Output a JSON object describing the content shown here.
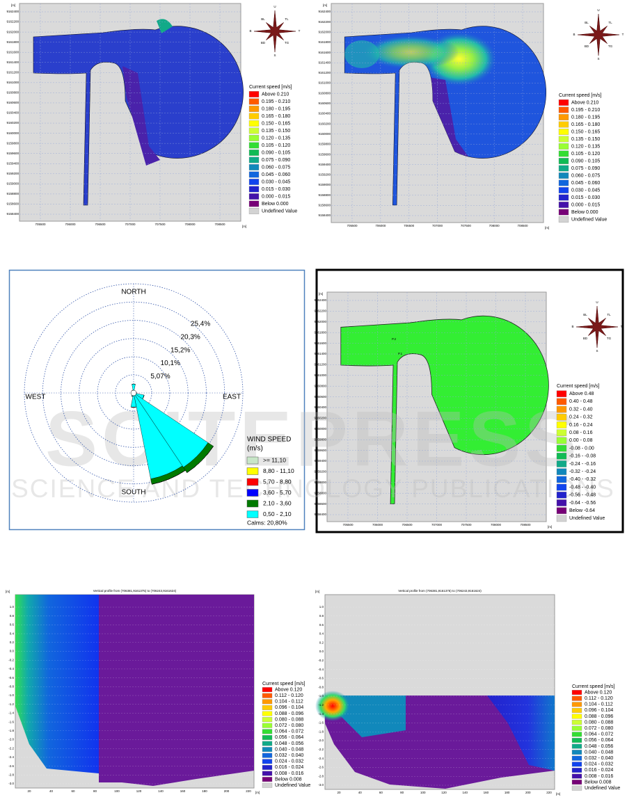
{
  "watermark": {
    "brand": "SCITEPRESS",
    "sub": "SCIENCE AND TECHNOLOGY PUBLICATIONS"
  },
  "compass": [
    "U",
    "TL",
    "T",
    "TG",
    "S",
    "BD",
    "B",
    "BL"
  ],
  "palette": [
    "#ff0000",
    "#ff5a00",
    "#ff9900",
    "#ffcc00",
    "#ffff00",
    "#ccff33",
    "#99ff33",
    "#33dd33",
    "#11bb55",
    "#11aa88",
    "#1188bb",
    "#1166dd",
    "#1144ee",
    "#2222cc",
    "#4411aa",
    "#770077"
  ],
  "undefined_color": "#d3d3d3",
  "map_xticks": [
    "705500",
    "706000",
    "706500",
    "707000",
    "707500",
    "708000",
    "708500"
  ],
  "map_yticks": [
    "9162400",
    "9162200",
    "9162000",
    "9161800",
    "9161600",
    "9161400",
    "9161200",
    "9161000",
    "9160800",
    "9160600",
    "9160400",
    "9160200",
    "9160000",
    "9159800",
    "9159600",
    "9159400",
    "9159200",
    "9159000",
    "9158800",
    "9158600",
    "9158400"
  ],
  "maps": [
    {
      "unit": "[m]",
      "legend_title": "Current speed [m/s]",
      "legend": [
        "Above  0.210",
        "0.195 - 0.210",
        "0.180 - 0.195",
        "0.165 - 0.180",
        "0.150 - 0.165",
        "0.135 - 0.150",
        "0.120 - 0.135",
        "0.105 - 0.120",
        "0.090 - 0.105",
        "0.075 - 0.090",
        "0.060 - 0.075",
        "0.045 - 0.060",
        "0.030 - 0.045",
        "0.015 - 0.030",
        "0.000 - 0.015",
        "Below  0.000"
      ],
      "undefined": "Undefined Value"
    },
    {
      "unit": "[m]",
      "legend_title": "Current speed [m/s]",
      "legend": [
        "Above  0.210",
        "0.195 - 0.210",
        "0.180 - 0.195",
        "0.165 - 0.180",
        "0.150 - 0.165",
        "0.135 - 0.150",
        "0.120 - 0.135",
        "0.105 - 0.120",
        "0.090 - 0.105",
        "0.075 - 0.090",
        "0.060 - 0.075",
        "0.045 - 0.060",
        "0.030 - 0.045",
        "0.015 - 0.030",
        "0.000 - 0.015",
        "Below  0.000"
      ],
      "undefined": "Undefined Value"
    },
    {
      "unit": "[m]",
      "legend_title": "Current speed [m/s]",
      "legend": [
        "Above  0.48",
        "0.40 - 0.48",
        "0.32 - 0.40",
        "0.24 - 0.32",
        "0.16 - 0.24",
        "0.08 - 0.16",
        "0.00 - 0.08",
        "-0.08 - 0.00",
        "-0.16 - -0.08",
        "-0.24 - -0.16",
        "-0.32 - -0.24",
        "-0.40 - -0.32",
        "-0.48 - -0.40",
        "-0.56 - -0.48",
        "-0.64 - -0.56",
        "Below  -0.64"
      ],
      "undefined": "Undefined Value",
      "points": [
        "P.2",
        "P.1"
      ]
    }
  ],
  "wind_rose": {
    "type": "wind_rose",
    "north": "NORTH",
    "south": "SOUTH",
    "east": "EAST",
    "west": "WEST",
    "rlim": [
      0,
      30.5
    ],
    "rticks": [
      {
        "value": 5.07,
        "label": "5,07%"
      },
      {
        "value": 10.1,
        "label": "10,1%"
      },
      {
        "value": 15.2,
        "label": "15,2%"
      },
      {
        "value": 20.3,
        "label": "20,3%"
      },
      {
        "value": 25.4,
        "label": "25,4%"
      }
    ],
    "directions": [
      0,
      22.5,
      45,
      67.5,
      90,
      112.5,
      135,
      157.5,
      180,
      202.5,
      225,
      247.5,
      270,
      292.5,
      315,
      337.5
    ],
    "legend_title": "WIND SPEED",
    "legend_unit": "(m/s)",
    "calms": "Calms: 20,80%",
    "series": [
      {
        "name": ">= 11,10",
        "color": "#c8e6c8",
        "values": [
          0,
          0,
          0,
          0,
          0,
          0,
          0,
          0,
          0,
          0,
          0,
          0,
          0,
          0,
          0,
          0
        ]
      },
      {
        "name": "8,80 - 11,10",
        "color": "#ffff00",
        "values": [
          0,
          0,
          0,
          0,
          0,
          0,
          0,
          0,
          0,
          0,
          0,
          0,
          0,
          0,
          0,
          0
        ]
      },
      {
        "name": "5,70 - 8,80",
        "color": "#ff0000",
        "values": [
          0,
          0,
          0,
          0,
          0,
          0,
          0,
          0,
          0,
          0,
          0,
          0,
          0,
          0,
          0,
          0
        ]
      },
      {
        "name": "3,60 - 5,70",
        "color": "#0000ff",
        "values": [
          0,
          0,
          0,
          0,
          0,
          0,
          0,
          0,
          0,
          0,
          0,
          0,
          0,
          0,
          0,
          0
        ]
      },
      {
        "name": "2,10 - 3,60",
        "color": "#007a00",
        "values": [
          0,
          0,
          0,
          0,
          0,
          0,
          1.8,
          1.5,
          0,
          0,
          0,
          0,
          0,
          0,
          0,
          0
        ]
      },
      {
        "name": "0,50 - 2,10",
        "color": "#00ffff",
        "values": [
          2.5,
          0.5,
          0.3,
          0.3,
          0.8,
          3,
          25,
          24.5,
          4,
          1,
          0.5,
          0.2,
          0.2,
          0.2,
          0.2,
          0.8
        ]
      }
    ]
  },
  "profiles": [
    {
      "title": "Vertical profile from (706381,9161375) to (706243,9161624)",
      "unit": "[m]",
      "yticks": [
        "1.0",
        "0.8",
        "0.6",
        "0.4",
        "0.2",
        "0.0",
        "-0.2",
        "-0.4",
        "-0.6",
        "-0.8",
        "-1.0",
        "-1.2",
        "-1.4",
        "-1.6",
        "-1.8",
        "-2.0",
        "-2.2",
        "-2.4",
        "-2.6",
        "-2.8",
        "-3.0"
      ],
      "xticks": [
        "20",
        "40",
        "60",
        "80",
        "100",
        "120",
        "140",
        "160",
        "180",
        "200",
        "220"
      ],
      "legend_title": "Current speed [m/s]",
      "legend": [
        "Above  0.120",
        "0.112 - 0.120",
        "0.104 - 0.112",
        "0.096 - 0.104",
        "0.088 - 0.096",
        "0.080 - 0.088",
        "0.072 - 0.080",
        "0.064 - 0.072",
        "0.056 - 0.064",
        "0.048 - 0.056",
        "0.040 - 0.048",
        "0.032 - 0.040",
        "0.024 - 0.032",
        "0.016 - 0.024",
        "0.008 - 0.016",
        "Below  0.008"
      ],
      "undefined": "Undefined Value"
    },
    {
      "title": "Vertical profile from (706381,9161375) to (706243,9161624)",
      "unit": "[m]",
      "yticks": [
        "1.0",
        "0.8",
        "0.6",
        "0.4",
        "0.2",
        "0.0",
        "-0.2",
        "-0.4",
        "-0.6",
        "-0.8",
        "-1.0",
        "-1.2",
        "-1.4",
        "-1.6",
        "-1.8",
        "-2.0",
        "-2.2",
        "-2.4",
        "-2.6",
        "-2.8",
        "-3.0"
      ],
      "xticks": [
        "20",
        "40",
        "60",
        "80",
        "100",
        "120",
        "140",
        "160",
        "180",
        "200",
        "220"
      ],
      "legend_title": "Current speed [m/s]",
      "legend": [
        "Above  0.120",
        "0.112 - 0.120",
        "0.104 - 0.112",
        "0.096 - 0.104",
        "0.088 - 0.096",
        "0.080 - 0.088",
        "0.072 - 0.080",
        "0.064 - 0.072",
        "0.056 - 0.064",
        "0.048 - 0.056",
        "0.040 - 0.048",
        "0.032 - 0.040",
        "0.024 - 0.032",
        "0.016 - 0.024",
        "0.008 - 0.016",
        "Below  0.008"
      ],
      "undefined": "Undefined Value"
    }
  ]
}
